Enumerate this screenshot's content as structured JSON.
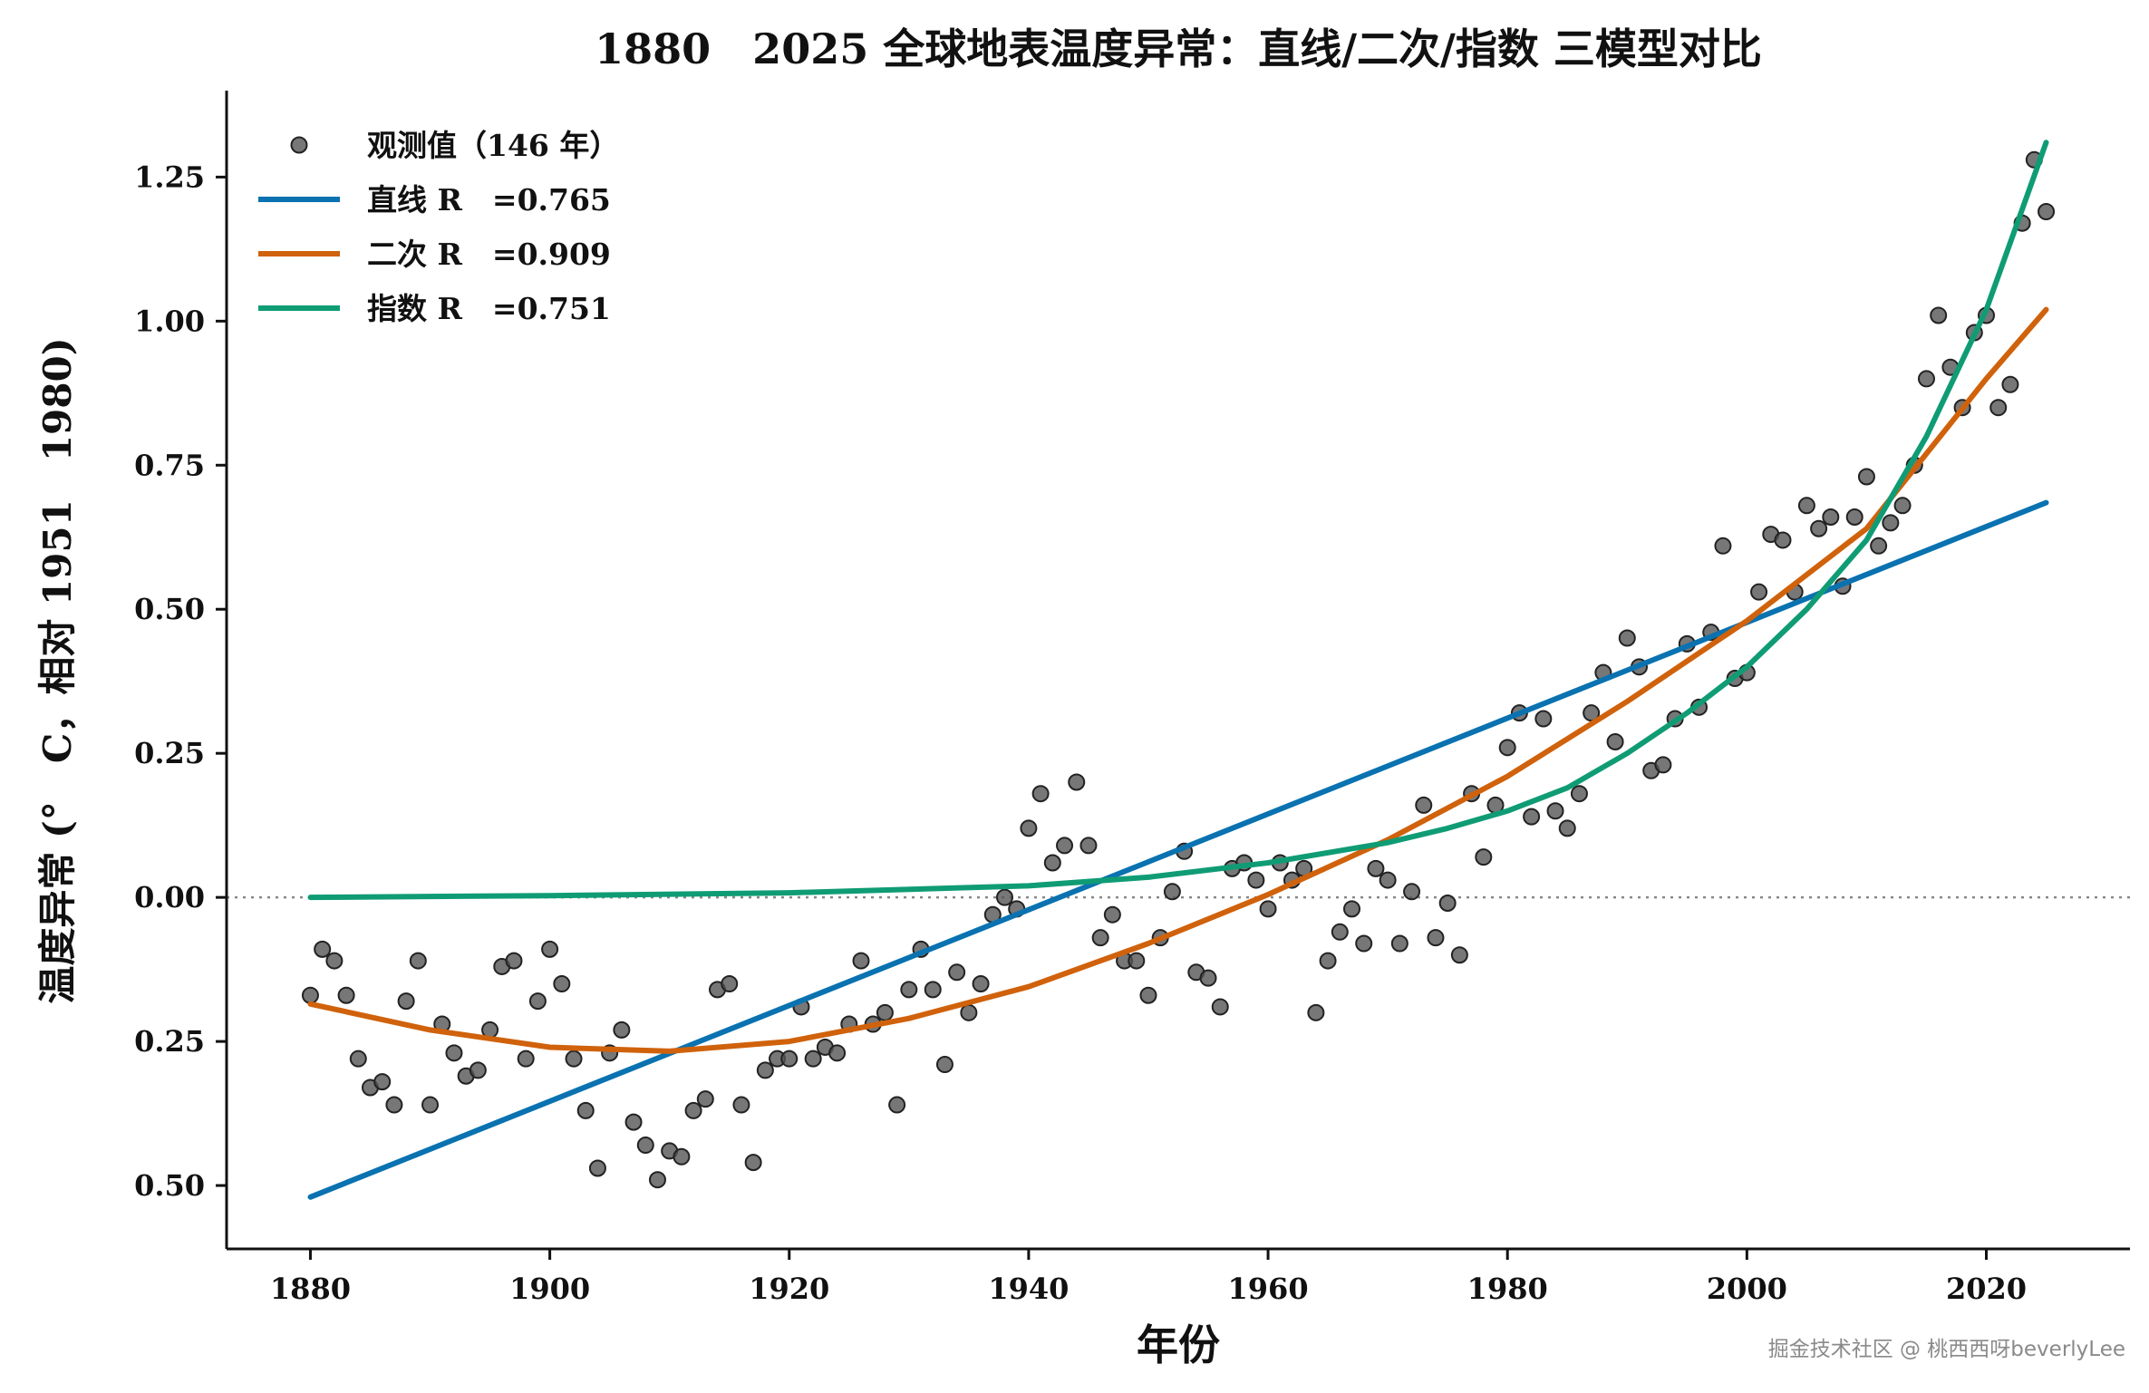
{
  "chart_data": {
    "type": "scatter",
    "title": "1880　2025 全球地表温度异常：直线/二次/指数 三模型对比",
    "xlabel": "年份",
    "ylabel": "温度异常 (°　C，相对 1951　1980)",
    "xlim": [
      1873,
      2032
    ],
    "ylim": [
      -0.61,
      1.4
    ],
    "xticks": [
      1880,
      1900,
      1920,
      1940,
      1960,
      1980,
      2000,
      2020
    ],
    "yticks": [
      -0.5,
      -0.25,
      0.0,
      0.25,
      0.5,
      0.75,
      1.0,
      1.25
    ],
    "ytick_labels": [
      "0.50",
      "0.25",
      "0.00",
      "0.25",
      "0.50",
      "0.75",
      "1.00",
      "1.25"
    ],
    "reference_line_y": 0,
    "legend_position": "top-left",
    "series": [
      {
        "name": "观测值（146 年）",
        "kind": "scatter",
        "color": "#555555",
        "x": [
          1880,
          1881,
          1882,
          1883,
          1884,
          1885,
          1886,
          1887,
          1888,
          1889,
          1890,
          1891,
          1892,
          1893,
          1894,
          1895,
          1896,
          1897,
          1898,
          1899,
          1900,
          1901,
          1902,
          1903,
          1904,
          1905,
          1906,
          1907,
          1908,
          1909,
          1910,
          1911,
          1912,
          1913,
          1914,
          1915,
          1916,
          1917,
          1918,
          1919,
          1920,
          1921,
          1922,
          1923,
          1924,
          1925,
          1926,
          1927,
          1928,
          1929,
          1930,
          1931,
          1932,
          1933,
          1934,
          1935,
          1936,
          1937,
          1938,
          1939,
          1940,
          1941,
          1942,
          1943,
          1944,
          1945,
          1946,
          1947,
          1948,
          1949,
          1950,
          1951,
          1952,
          1953,
          1954,
          1955,
          1956,
          1957,
          1958,
          1959,
          1960,
          1961,
          1962,
          1963,
          1964,
          1965,
          1966,
          1967,
          1968,
          1969,
          1970,
          1971,
          1972,
          1973,
          1974,
          1975,
          1976,
          1977,
          1978,
          1979,
          1980,
          1981,
          1982,
          1983,
          1984,
          1985,
          1986,
          1987,
          1988,
          1989,
          1990,
          1991,
          1992,
          1993,
          1994,
          1995,
          1996,
          1997,
          1998,
          1999,
          2000,
          2001,
          2002,
          2003,
          2004,
          2005,
          2006,
          2007,
          2008,
          2009,
          2010,
          2011,
          2012,
          2013,
          2014,
          2015,
          2016,
          2017,
          2018,
          2019,
          2020,
          2021,
          2022,
          2023,
          2024,
          2025
        ],
        "y": [
          -0.17,
          -0.09,
          -0.11,
          -0.17,
          -0.28,
          -0.33,
          -0.32,
          -0.36,
          -0.18,
          -0.11,
          -0.36,
          -0.22,
          -0.27,
          -0.31,
          -0.3,
          -0.23,
          -0.12,
          -0.11,
          -0.28,
          -0.18,
          -0.09,
          -0.15,
          -0.28,
          -0.37,
          -0.47,
          -0.27,
          -0.23,
          -0.39,
          -0.43,
          -0.49,
          -0.44,
          -0.45,
          -0.37,
          -0.35,
          -0.16,
          -0.15,
          -0.36,
          -0.46,
          -0.3,
          -0.28,
          -0.28,
          -0.19,
          -0.28,
          -0.26,
          -0.27,
          -0.22,
          -0.11,
          -0.22,
          -0.2,
          -0.36,
          -0.16,
          -0.09,
          -0.16,
          -0.29,
          -0.13,
          -0.2,
          -0.15,
          -0.03,
          0.0,
          -0.02,
          0.12,
          0.18,
          0.06,
          0.09,
          0.2,
          0.09,
          -0.07,
          -0.03,
          -0.11,
          -0.11,
          -0.17,
          -0.07,
          0.01,
          0.08,
          -0.13,
          -0.14,
          -0.19,
          0.05,
          0.06,
          0.03,
          -0.02,
          0.06,
          0.03,
          0.05,
          -0.2,
          -0.11,
          -0.06,
          -0.02,
          -0.08,
          0.05,
          0.03,
          -0.08,
          0.01,
          0.16,
          -0.07,
          -0.01,
          -0.1,
          0.18,
          0.07,
          0.16,
          0.26,
          0.32,
          0.14,
          0.31,
          0.15,
          0.12,
          0.18,
          0.32,
          0.39,
          0.27,
          0.45,
          0.4,
          0.22,
          0.23,
          0.31,
          0.44,
          0.33,
          0.46,
          0.61,
          0.38,
          0.39,
          0.53,
          0.63,
          0.62,
          0.53,
          0.68,
          0.64,
          0.66,
          0.54,
          0.66,
          0.73,
          0.61,
          0.65,
          0.68,
          0.75,
          0.9,
          1.01,
          0.92,
          0.85,
          0.98,
          1.01,
          0.85,
          0.89,
          1.17,
          1.28,
          1.19
        ]
      },
      {
        "name": "直线 R　=0.765",
        "kind": "line",
        "color": "#0a72b0",
        "x": [
          1880,
          2025
        ],
        "y": [
          -0.52,
          0.685
        ]
      },
      {
        "name": "二次 R　=0.909",
        "kind": "line",
        "color": "#d0620c",
        "x": [
          1880,
          1890,
          1900,
          1910,
          1920,
          1930,
          1940,
          1950,
          1960,
          1970,
          1980,
          1990,
          2000,
          2010,
          2020,
          2025
        ],
        "y": [
          -0.185,
          -0.23,
          -0.26,
          -0.267,
          -0.25,
          -0.21,
          -0.155,
          -0.08,
          0.005,
          0.1,
          0.21,
          0.34,
          0.48,
          0.64,
          0.9,
          1.02
        ]
      },
      {
        "name": "指数 R　=0.751",
        "kind": "line",
        "color": "#0f9c74",
        "x": [
          1880,
          1900,
          1920,
          1940,
          1950,
          1960,
          1970,
          1975,
          1980,
          1985,
          1990,
          1995,
          2000,
          2005,
          2010,
          2015,
          2020,
          2025
        ],
        "y": [
          0.0,
          0.003,
          0.008,
          0.02,
          0.035,
          0.06,
          0.095,
          0.12,
          0.15,
          0.19,
          0.25,
          0.32,
          0.4,
          0.5,
          0.62,
          0.8,
          1.02,
          1.31
        ]
      }
    ]
  },
  "watermark": "掘金技术社区 @ 桃西西呀beverlyLee"
}
